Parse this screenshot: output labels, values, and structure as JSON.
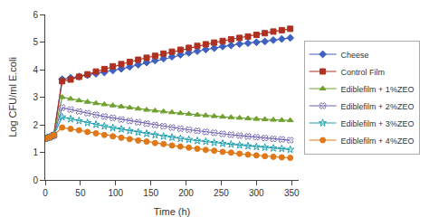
{
  "chart_data": {
    "type": "line",
    "xlabel": "Time (h)",
    "ylabel": "Log CFU/ml E.coli",
    "x": [
      0,
      6,
      12,
      24,
      36,
      48,
      60,
      72,
      84,
      96,
      108,
      120,
      132,
      144,
      156,
      168,
      180,
      192,
      204,
      216,
      228,
      240,
      252,
      264,
      276,
      288,
      300,
      312,
      324,
      336,
      348
    ],
    "xlim": [
      0,
      360
    ],
    "ylim": [
      0,
      6
    ],
    "xticks": [
      0,
      50,
      100,
      150,
      200,
      250,
      300,
      350
    ],
    "yticks": [
      0,
      1,
      2,
      3,
      4,
      5,
      6
    ],
    "grid": false,
    "legend": "right",
    "series": [
      {
        "name": "Cheese",
        "color": "#4060c0",
        "marker": "diamond",
        "line_style": "solid",
        "values": [
          1.5,
          1.55,
          1.6,
          3.65,
          3.7,
          3.75,
          3.8,
          3.85,
          3.9,
          3.97,
          4.03,
          4.1,
          4.18,
          4.26,
          4.33,
          4.4,
          4.47,
          4.54,
          4.61,
          4.67,
          4.73,
          4.78,
          4.84,
          4.88,
          4.93,
          4.96,
          4.99,
          5.02,
          5.07,
          5.11,
          5.15
        ]
      },
      {
        "name": "Control Film",
        "color": "#b03020",
        "marker": "square",
        "line_style": "solid",
        "values": [
          1.5,
          1.55,
          1.62,
          3.58,
          3.64,
          3.74,
          3.83,
          3.93,
          4.02,
          4.12,
          4.2,
          4.28,
          4.36,
          4.43,
          4.5,
          4.58,
          4.65,
          4.72,
          4.79,
          4.86,
          4.92,
          4.98,
          5.04,
          5.1,
          5.15,
          5.2,
          5.26,
          5.32,
          5.38,
          5.43,
          5.48
        ]
      },
      {
        "name": "Ediblefilm + 1%ZEO",
        "color": "#70a030",
        "marker": "triangle-up",
        "line_style": "solid",
        "values": [
          1.5,
          1.55,
          1.62,
          3.0,
          2.94,
          2.88,
          2.83,
          2.78,
          2.74,
          2.7,
          2.66,
          2.62,
          2.58,
          2.54,
          2.51,
          2.48,
          2.45,
          2.42,
          2.39,
          2.36,
          2.34,
          2.31,
          2.29,
          2.27,
          2.25,
          2.23,
          2.21,
          2.2,
          2.18,
          2.17,
          2.16
        ]
      },
      {
        "name": "Ediblefilm + 2%ZEO",
        "color": "#7060b0",
        "marker": "x",
        "line_style": "solid",
        "values": [
          1.5,
          1.55,
          1.62,
          2.62,
          2.55,
          2.48,
          2.42,
          2.36,
          2.3,
          2.25,
          2.19,
          2.14,
          2.09,
          2.04,
          1.99,
          1.95,
          1.9,
          1.86,
          1.82,
          1.78,
          1.74,
          1.71,
          1.67,
          1.64,
          1.61,
          1.58,
          1.55,
          1.52,
          1.49,
          1.47,
          1.44
        ]
      },
      {
        "name": "Ediblefilm + 3%ZEO",
        "color": "#20a0b0",
        "marker": "star",
        "line_style": "solid",
        "values": [
          1.5,
          1.55,
          1.62,
          2.28,
          2.21,
          2.14,
          2.07,
          2.01,
          1.95,
          1.89,
          1.84,
          1.78,
          1.73,
          1.68,
          1.63,
          1.58,
          1.54,
          1.5,
          1.46,
          1.42,
          1.39,
          1.35,
          1.32,
          1.29,
          1.26,
          1.23,
          1.2,
          1.18,
          1.15,
          1.13,
          1.1
        ]
      },
      {
        "name": "Ediblefilm + 4%ZEO",
        "color": "#e07818",
        "marker": "circle",
        "line_style": "solid",
        "values": [
          1.5,
          1.55,
          1.62,
          1.9,
          1.85,
          1.8,
          1.74,
          1.69,
          1.63,
          1.58,
          1.53,
          1.48,
          1.43,
          1.39,
          1.34,
          1.3,
          1.25,
          1.21,
          1.17,
          1.13,
          1.09,
          1.06,
          1.02,
          0.99,
          0.95,
          0.92,
          0.89,
          0.86,
          0.84,
          0.82,
          0.8
        ]
      }
    ]
  }
}
